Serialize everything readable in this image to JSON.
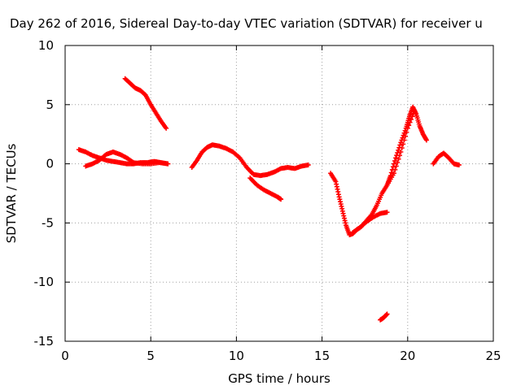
{
  "chart_data": {
    "type": "scatter",
    "title": "Day 262 of 2016, Sidereal Day-to-day VTEC variation (SDTVAR) for receiver u",
    "xlabel": "GPS time / hours",
    "ylabel": "SDTVAR / TECUs",
    "xlim": [
      0,
      25
    ],
    "ylim": [
      -15,
      10
    ],
    "xticks": [
      0,
      5,
      10,
      15,
      20,
      25
    ],
    "yticks": [
      -15,
      -10,
      -5,
      0,
      5,
      10
    ],
    "grid": true,
    "marker": "plus",
    "color": "#ff0000",
    "series": [
      {
        "x": [
          0.8,
          1.2,
          1.6,
          2.0,
          2.4,
          2.8,
          3.2,
          3.6,
          4.0,
          4.4,
          4.8,
          5.2,
          5.6,
          6.0
        ],
        "y": [
          1.2,
          1.0,
          0.7,
          0.5,
          0.3,
          0.2,
          0.1,
          0.0,
          0.0,
          0.1,
          0.1,
          0.2,
          0.1,
          0.0
        ]
      },
      {
        "x": [
          1.2,
          1.6,
          2.0,
          2.4,
          2.8,
          3.2,
          3.6,
          4.0,
          4.5,
          5.0,
          5.5,
          6.0
        ],
        "y": [
          -0.2,
          0.0,
          0.3,
          0.8,
          1.0,
          0.8,
          0.5,
          0.1,
          0.0,
          0.0,
          0.1,
          0.0
        ]
      },
      {
        "x": [
          3.5,
          3.8,
          4.1,
          4.4,
          4.7,
          5.0,
          5.3,
          5.6,
          5.9
        ],
        "y": [
          7.2,
          6.8,
          6.4,
          6.2,
          5.8,
          5.0,
          4.3,
          3.6,
          3.0
        ]
      },
      {
        "x": [
          7.4,
          7.7,
          8.0,
          8.3,
          8.6,
          9.0,
          9.4,
          9.8,
          10.2,
          10.6,
          11.0,
          11.4,
          11.8,
          12.2,
          12.6,
          13.0,
          13.4,
          13.8,
          14.2
        ],
        "y": [
          -0.3,
          0.3,
          1.0,
          1.4,
          1.6,
          1.5,
          1.3,
          1.0,
          0.5,
          -0.3,
          -0.9,
          -1.0,
          -0.9,
          -0.7,
          -0.4,
          -0.3,
          -0.4,
          -0.2,
          -0.1
        ]
      },
      {
        "x": [
          10.8,
          11.2,
          11.6,
          12.0,
          12.4,
          12.6
        ],
        "y": [
          -1.2,
          -1.8,
          -2.2,
          -2.5,
          -2.8,
          -3.0
        ]
      },
      {
        "x": [
          15.5,
          15.8,
          16.0,
          16.2,
          16.4,
          16.6,
          16.8,
          17.0,
          17.3,
          17.6,
          17.9,
          18.2,
          18.5,
          18.8,
          19.0,
          19.3,
          19.6,
          19.9,
          20.1,
          20.3,
          20.5,
          20.7,
          20.9,
          21.1
        ],
        "y": [
          -0.8,
          -1.5,
          -2.8,
          -4.0,
          -5.2,
          -6.0,
          -5.9,
          -5.6,
          -5.3,
          -4.8,
          -4.3,
          -3.5,
          -2.5,
          -1.8,
          -1.0,
          0.5,
          1.8,
          3.0,
          4.0,
          4.8,
          4.2,
          3.2,
          2.5,
          2.0
        ]
      },
      {
        "x": [
          16.8,
          17.2,
          17.6,
          18.0,
          18.4,
          18.8
        ],
        "y": [
          -5.8,
          -5.4,
          -4.9,
          -4.5,
          -4.2,
          -4.1
        ]
      },
      {
        "x": [
          18.8,
          19.2,
          19.6,
          20.0,
          20.4
        ],
        "y": [
          -1.8,
          -0.8,
          1.0,
          3.0,
          4.5
        ]
      },
      {
        "x": [
          21.5,
          21.8,
          22.1,
          22.4,
          22.7,
          23.0
        ],
        "y": [
          0.0,
          0.6,
          0.9,
          0.5,
          0.0,
          -0.1
        ]
      },
      {
        "x": [
          18.4,
          18.6,
          18.8
        ],
        "y": [
          -13.2,
          -13.0,
          -12.7
        ]
      }
    ]
  }
}
